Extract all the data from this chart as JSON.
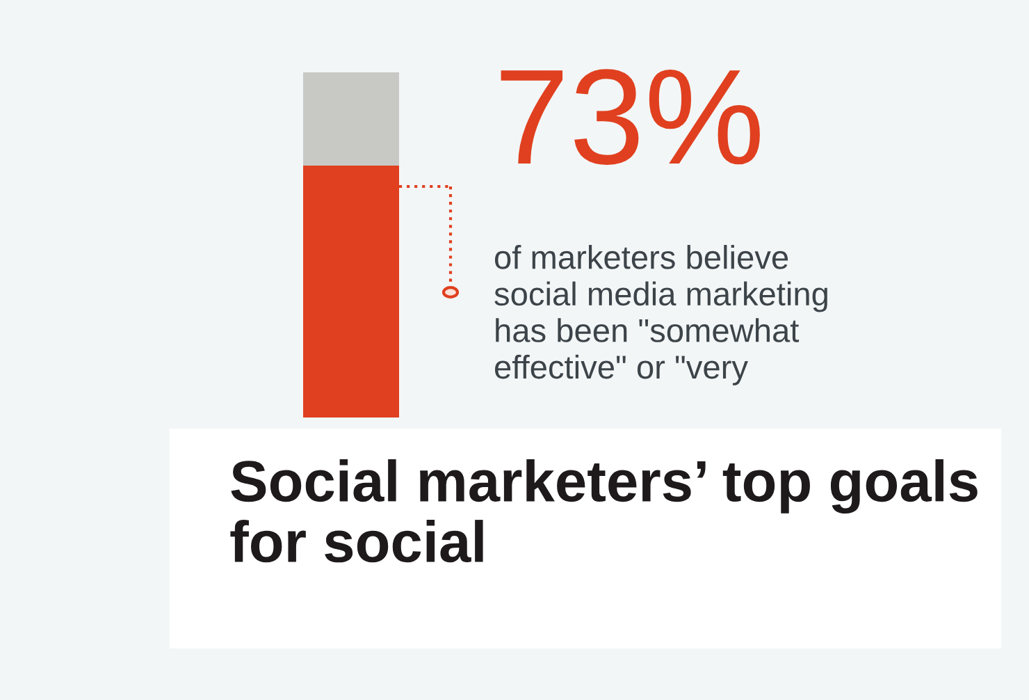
{
  "chart_data": {
    "type": "bar",
    "title": "Social marketers’ top goals for social",
    "categories": [
      null
    ],
    "stacked": true,
    "ylim": [
      0,
      100
    ],
    "tick_labels": false,
    "series": [
      {
        "color": "#e0401f",
        "values": [
          73
        ],
        "value_labels": [
          "73%"
        ]
      },
      {
        "color": "#c8c8c5",
        "values": [
          27
        ]
      }
    ],
    "annotations": [
      "of marketers believe\nsocial media marketing\nhas been \"somewhat\neffective\" or \"very"
    ]
  }
}
